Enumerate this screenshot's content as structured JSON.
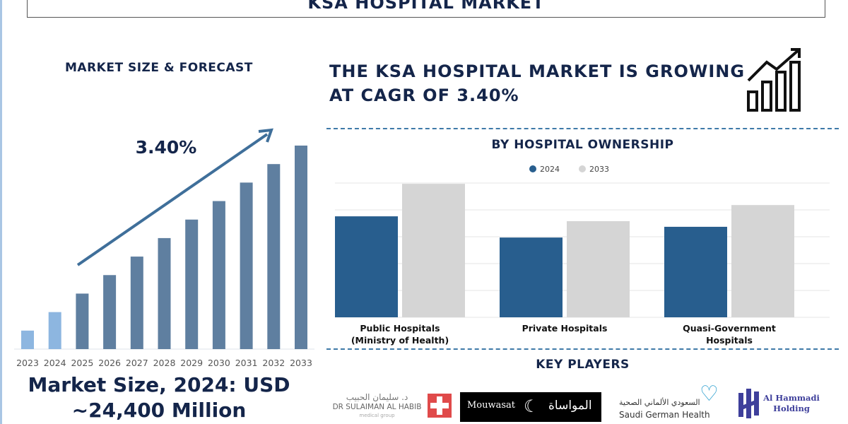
{
  "title": "KSA HOSPITAL MARKET",
  "left": {
    "heading": "MARKET SIZE & FORECAST",
    "cagr_label": "3.40%",
    "market_size_line1": "Market Size, 2024: USD",
    "market_size_line2": "~24,400 Million"
  },
  "right": {
    "headline": "THE KSA HOSPITAL MARKET IS GROWING AT CAGR OF 3.40%",
    "chart_heading": "BY HOSPITAL OWNERSHIP",
    "key_players_heading": "KEY PLAYERS"
  },
  "key_players": [
    {
      "name": "DR SULAIMAN AL HABIB",
      "sub": "medical group",
      "arabic": "د. سليمان الحبيب"
    },
    {
      "name": "Mouwasat",
      "arabic": "المواساة"
    },
    {
      "name": "Saudi German Health",
      "arabic": "السعودي الألماني الصحية"
    },
    {
      "name": "Al Hammadi Holding"
    }
  ],
  "chart_data": [
    {
      "type": "bar",
      "title": "MARKET SIZE & FORECAST",
      "categories": [
        "2023",
        "2024",
        "2025",
        "2026",
        "2027",
        "2028",
        "2029",
        "2030",
        "2031",
        "2032",
        "2033"
      ],
      "values": [
        1,
        2,
        3,
        4,
        5,
        6,
        7,
        8,
        9,
        10,
        11
      ],
      "annotation": "3.40%",
      "colors": {
        "historical": "#8db6e0",
        "forecast": "#5f7fa0"
      }
    },
    {
      "type": "bar",
      "title": "BY HOSPITAL OWNERSHIP",
      "categories": [
        "Public Hospitals (Ministry of Health)",
        "Private Hospitals",
        "Quasi-Government Hospitals"
      ],
      "series": [
        {
          "name": "2024",
          "values": [
            3.76,
            2.97,
            3.37
          ],
          "color": "#285e8e"
        },
        {
          "name": "2033",
          "values": [
            4.97,
            3.58,
            4.18
          ],
          "color": "#d5d5d5"
        }
      ],
      "ylim": [
        0,
        5
      ],
      "legend": "top-center",
      "grid": true
    }
  ]
}
